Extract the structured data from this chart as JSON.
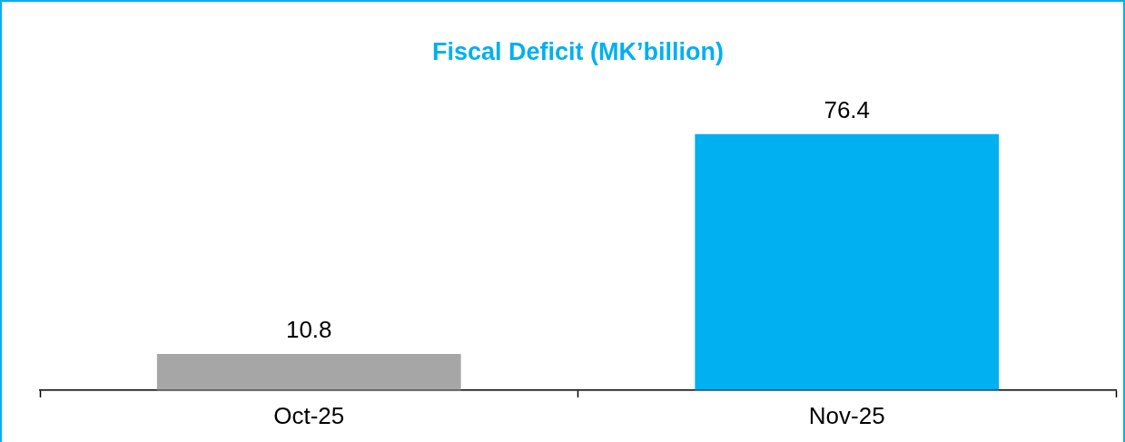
{
  "chart_data": {
    "type": "bar",
    "title": "Fiscal Deficit (MK’billion)",
    "categories": [
      "Oct-25",
      "Nov-25"
    ],
    "values": [
      10.8,
      76.4
    ],
    "colors": [
      "#a6a6a6",
      "#00b0f0"
    ],
    "data_labels": true,
    "grid": false,
    "legend": false
  }
}
